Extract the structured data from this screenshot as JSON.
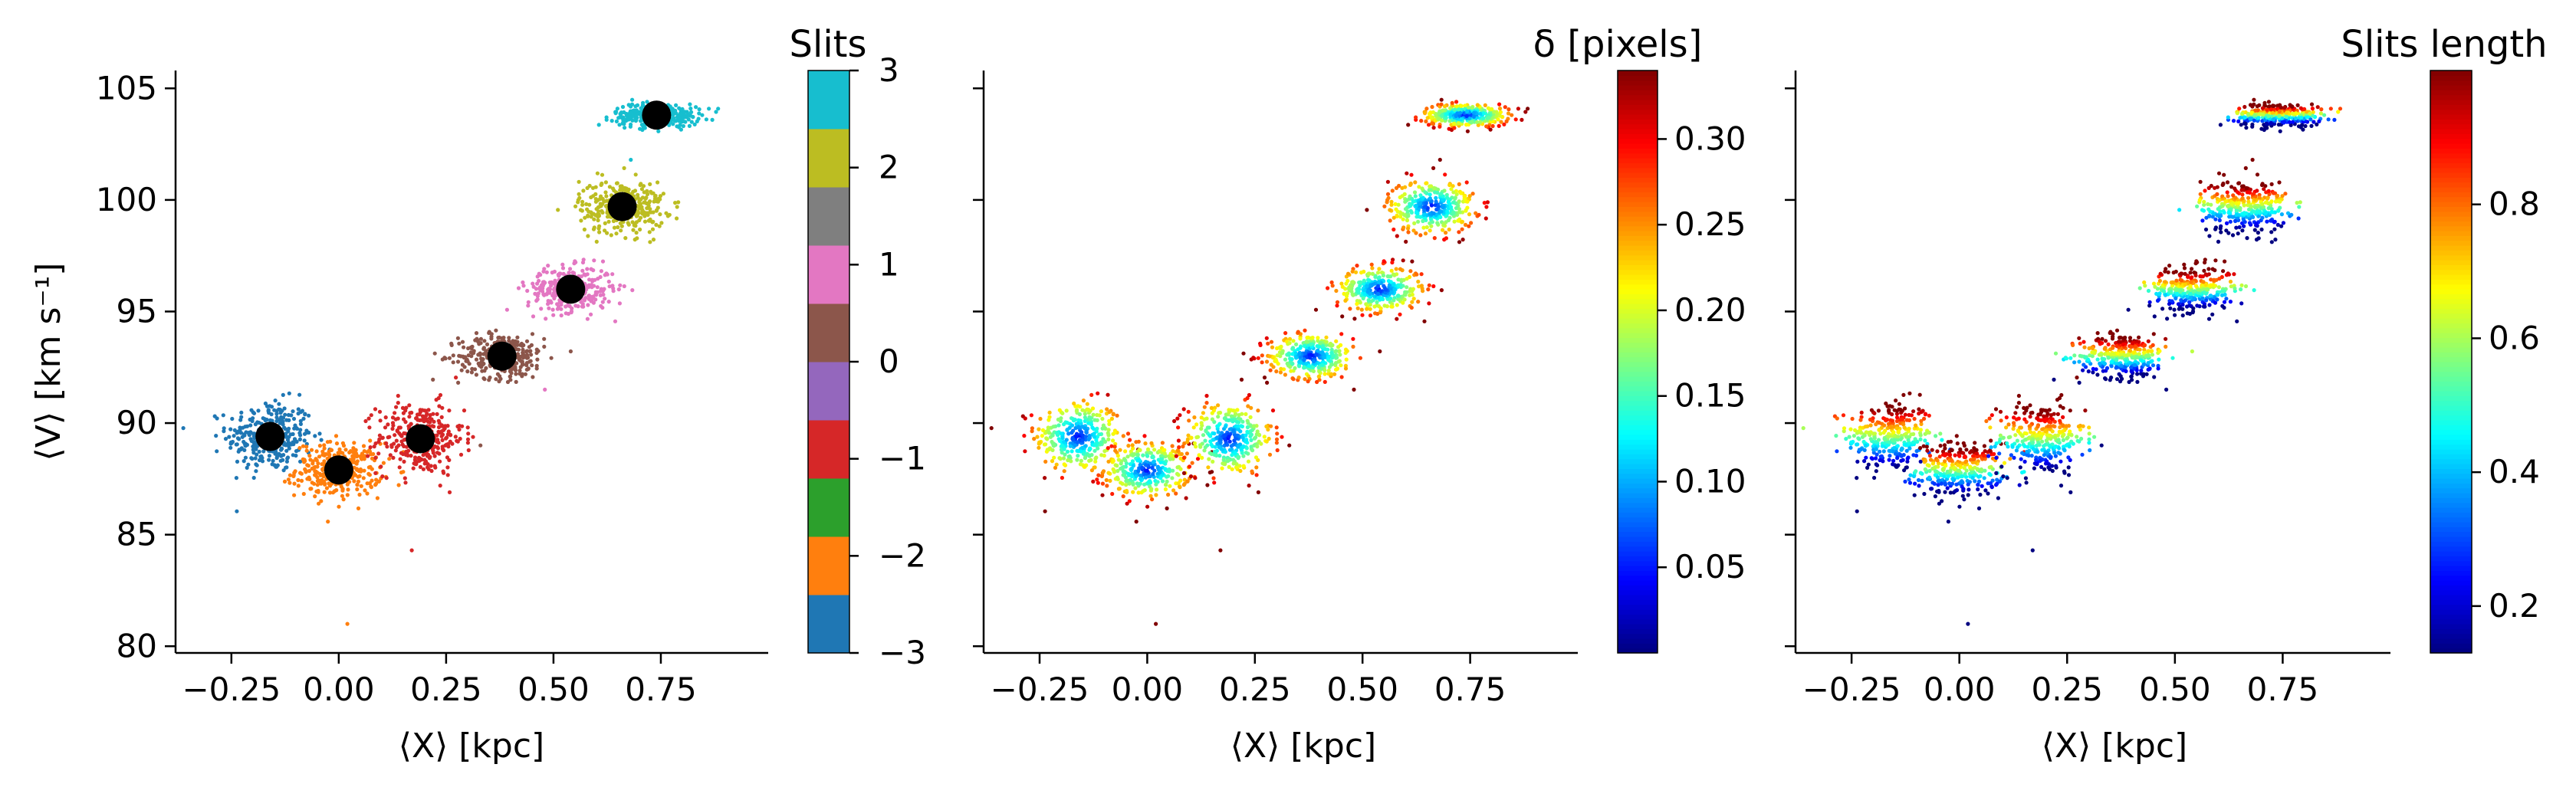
{
  "chart_data": [
    {
      "type": "scatter",
      "xlabel": "⟨X⟩ [kpc]",
      "ylabel": "⟨V⟩ [km s⁻¹]",
      "xlim": [
        -0.38,
        1.0
      ],
      "ylim": [
        79.7,
        105.8
      ],
      "x_ticks": [
        "−0.25",
        "0.00",
        "0.25",
        "0.50",
        "0.75"
      ],
      "y_ticks": [
        "80",
        "85",
        "90",
        "95",
        "100",
        "105"
      ],
      "colorbar": {
        "title": "Slits",
        "type": "discrete",
        "range": [
          -3,
          3
        ],
        "ticks": [
          "3",
          "2",
          "1",
          "0",
          "−1",
          "−2",
          "−3"
        ],
        "colors": [
          "#1f77b4",
          "#ff7f0e",
          "#2ca02c",
          "#d62728",
          "#9467bd",
          "#8c564b",
          "#e377c2",
          "#7f7f7f",
          "#bcbd22",
          "#17becf"
        ]
      },
      "clusters": [
        {
          "x": -0.16,
          "y": 89.4,
          "sx": 0.05,
          "sy": 0.8,
          "color": "#1f77b4"
        },
        {
          "x": 0.0,
          "y": 87.9,
          "sx": 0.05,
          "sy": 0.6,
          "color": "#ff7f0e"
        },
        {
          "x": 0.19,
          "y": 89.3,
          "sx": 0.05,
          "sy": 0.8,
          "color": "#d62728"
        },
        {
          "x": 0.38,
          "y": 93.0,
          "sx": 0.05,
          "sy": 0.5,
          "color": "#8c564b"
        },
        {
          "x": 0.54,
          "y": 96.0,
          "sx": 0.05,
          "sy": 0.5,
          "color": "#e377c2"
        },
        {
          "x": 0.66,
          "y": 99.7,
          "sx": 0.05,
          "sy": 0.6,
          "color": "#bcbd22"
        },
        {
          "x": 0.74,
          "y": 103.8,
          "sx": 0.05,
          "sy": 0.25,
          "color": "#17becf"
        }
      ],
      "means": [
        {
          "x": -0.16,
          "y": 89.4
        },
        {
          "x": 0.0,
          "y": 87.9
        },
        {
          "x": 0.19,
          "y": 89.3
        },
        {
          "x": 0.38,
          "y": 93.0
        },
        {
          "x": 0.54,
          "y": 96.0
        },
        {
          "x": 0.66,
          "y": 99.7
        },
        {
          "x": 0.74,
          "y": 103.8
        }
      ]
    },
    {
      "type": "scatter",
      "xlabel": "⟨X⟩ [kpc]",
      "xlim": [
        -0.38,
        1.0
      ],
      "ylim": [
        79.7,
        105.8
      ],
      "x_ticks": [
        "−0.25",
        "0.00",
        "0.25",
        "0.50",
        "0.75"
      ],
      "colorbar": {
        "title": "δ [pixels]",
        "type": "continuous",
        "colormap": "jet",
        "range": [
          0.0,
          0.34
        ],
        "ticks": [
          0.05,
          0.1,
          0.15,
          0.2,
          0.25,
          0.3
        ],
        "tick_labels": [
          "0.05",
          "0.10",
          "0.15",
          "0.20",
          "0.25",
          "0.30"
        ]
      },
      "color_rule": "center-low"
    },
    {
      "type": "scatter",
      "xlabel": "⟨X⟩ [kpc]",
      "xlim": [
        -0.38,
        1.0
      ],
      "ylim": [
        79.7,
        105.8
      ],
      "x_ticks": [
        "−0.25",
        "0.00",
        "0.25",
        "0.50",
        "0.75"
      ],
      "colorbar": {
        "title": "Slits length",
        "type": "continuous",
        "colormap": "jet",
        "range": [
          0.13,
          1.0
        ],
        "ticks": [
          0.2,
          0.4,
          0.6,
          0.8
        ],
        "tick_labels": [
          "0.2",
          "0.4",
          "0.6",
          "0.8"
        ]
      },
      "color_rule": "top-high"
    }
  ]
}
